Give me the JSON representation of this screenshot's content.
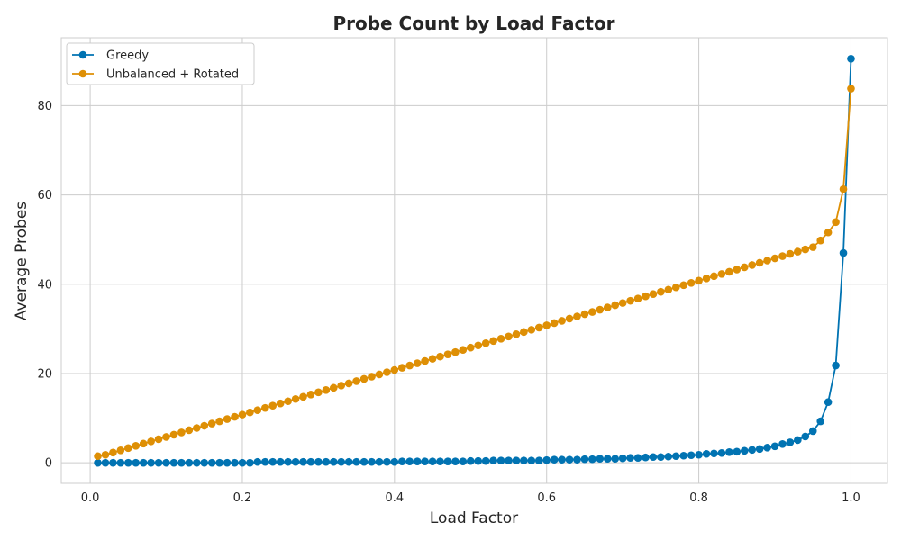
{
  "chart_data": {
    "type": "line",
    "title": "Probe Count by Load Factor",
    "xlabel": "Load Factor",
    "ylabel": "Average Probes",
    "xlim": [
      -0.038,
      1.048
    ],
    "ylim": [
      -4.6,
      95.2
    ],
    "xticks": [
      0.0,
      0.2,
      0.4,
      0.6,
      0.8,
      1.0
    ],
    "xtick_labels": [
      "0.0",
      "0.2",
      "0.4",
      "0.6",
      "0.8",
      "1.0"
    ],
    "yticks": [
      0,
      20,
      40,
      60,
      80
    ],
    "ytick_labels": [
      "0",
      "20",
      "40",
      "60",
      "80"
    ],
    "grid": true,
    "legend_position": "top-left",
    "x": [
      0.01,
      0.02,
      0.03,
      0.04,
      0.05,
      0.06,
      0.07,
      0.08,
      0.09,
      0.1,
      0.11,
      0.12,
      0.13,
      0.14,
      0.15,
      0.16,
      0.17,
      0.18,
      0.19,
      0.2,
      0.21,
      0.22,
      0.23,
      0.24,
      0.25,
      0.26,
      0.27,
      0.28,
      0.29,
      0.3,
      0.31,
      0.32,
      0.33,
      0.34,
      0.35,
      0.36,
      0.37,
      0.38,
      0.39,
      0.4,
      0.41,
      0.42,
      0.43,
      0.44,
      0.45,
      0.46,
      0.47,
      0.48,
      0.49,
      0.5,
      0.51,
      0.52,
      0.53,
      0.54,
      0.55,
      0.56,
      0.57,
      0.58,
      0.59,
      0.6,
      0.61,
      0.62,
      0.63,
      0.64,
      0.65,
      0.66,
      0.67,
      0.68,
      0.69,
      0.7,
      0.71,
      0.72,
      0.73,
      0.74,
      0.75,
      0.76,
      0.77,
      0.78,
      0.79,
      0.8,
      0.81,
      0.82,
      0.83,
      0.84,
      0.85,
      0.86,
      0.87,
      0.88,
      0.89,
      0.9,
      0.91,
      0.92,
      0.93,
      0.94,
      0.95,
      0.96,
      0.97,
      0.98,
      0.99,
      1.0
    ],
    "series": [
      {
        "name": "Greedy",
        "color": "#0173b2",
        "values": [
          0.0,
          0.0,
          0.0,
          0.0,
          0.0,
          0.0,
          0.0,
          0.0,
          0.0,
          0.0,
          0.0,
          0.0,
          0.0,
          0.0,
          0.0,
          0.0,
          0.0,
          0.0,
          0.0,
          0.0,
          0.0,
          0.2,
          0.2,
          0.2,
          0.2,
          0.2,
          0.2,
          0.2,
          0.2,
          0.2,
          0.2,
          0.2,
          0.2,
          0.2,
          0.2,
          0.2,
          0.2,
          0.2,
          0.2,
          0.2,
          0.3,
          0.3,
          0.3,
          0.3,
          0.3,
          0.3,
          0.3,
          0.3,
          0.3,
          0.4,
          0.4,
          0.4,
          0.5,
          0.5,
          0.5,
          0.5,
          0.5,
          0.5,
          0.5,
          0.6,
          0.7,
          0.7,
          0.7,
          0.7,
          0.8,
          0.8,
          0.9,
          0.9,
          0.9,
          1.0,
          1.1,
          1.1,
          1.2,
          1.3,
          1.3,
          1.4,
          1.5,
          1.6,
          1.7,
          1.8,
          2.0,
          2.1,
          2.2,
          2.4,
          2.5,
          2.7,
          2.9,
          3.1,
          3.4,
          3.7,
          4.2,
          4.6,
          5.1,
          5.9,
          7.1,
          9.3,
          13.6,
          21.8,
          47.0,
          90.5
        ]
      },
      {
        "name": "Unbalanced + Rotated",
        "color": "#de8f05",
        "values": [
          1.5,
          1.8,
          2.3,
          2.8,
          3.3,
          3.8,
          4.3,
          4.8,
          5.3,
          5.8,
          6.3,
          6.8,
          7.3,
          7.8,
          8.3,
          8.8,
          9.3,
          9.8,
          10.3,
          10.8,
          11.3,
          11.8,
          12.3,
          12.8,
          13.3,
          13.8,
          14.3,
          14.8,
          15.3,
          15.8,
          16.3,
          16.8,
          17.3,
          17.8,
          18.3,
          18.8,
          19.3,
          19.8,
          20.3,
          20.8,
          21.3,
          21.8,
          22.3,
          22.8,
          23.3,
          23.8,
          24.3,
          24.8,
          25.3,
          25.8,
          26.3,
          26.8,
          27.3,
          27.8,
          28.3,
          28.8,
          29.3,
          29.8,
          30.3,
          30.8,
          31.3,
          31.8,
          32.3,
          32.8,
          33.3,
          33.8,
          34.3,
          34.8,
          35.3,
          35.8,
          36.3,
          36.8,
          37.3,
          37.8,
          38.3,
          38.8,
          39.3,
          39.8,
          40.3,
          40.8,
          41.3,
          41.8,
          42.3,
          42.8,
          43.3,
          43.8,
          44.3,
          44.8,
          45.3,
          45.8,
          46.3,
          46.8,
          47.3,
          47.8,
          48.3,
          49.8,
          51.6,
          53.9,
          61.3,
          83.8
        ]
      }
    ]
  }
}
